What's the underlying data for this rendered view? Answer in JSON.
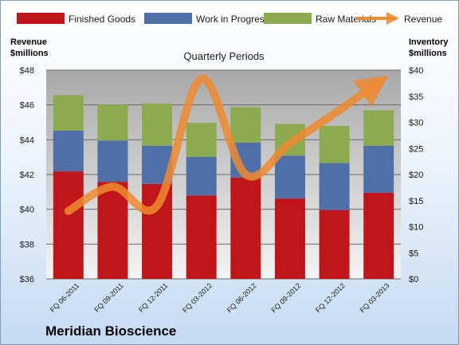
{
  "chart_data": {
    "type": "bar",
    "stacked": true,
    "title": "Quarterly Periods",
    "company": "Meridian Bioscience",
    "left_axis": {
      "label_line1": "Revenue",
      "label_line2": "$millions",
      "ylim": [
        36,
        48
      ],
      "ticks": [
        "$36",
        "$38",
        "$40",
        "$42",
        "$44",
        "$46",
        "$48"
      ]
    },
    "right_axis": {
      "label_line1": "Inventory",
      "label_line2": "$millions",
      "ylim": [
        0,
        40
      ],
      "ticks": [
        "$0",
        "$5",
        "$10",
        "$15",
        "$20",
        "$25",
        "$30",
        "$35",
        "$40"
      ]
    },
    "categories": [
      "FQ 06-2011",
      "FQ 09-2011",
      "FQ 12-2011",
      "FQ 03-2012",
      "FQ 06-2012",
      "FQ 09-2012",
      "FQ 12-2012",
      "FQ 03-2013"
    ],
    "series": [
      {
        "name": "Finished Goods",
        "axis": "right",
        "color": "#c0161a",
        "values": [
          20.6,
          18.6,
          18.2,
          16.0,
          19.4,
          15.4,
          13.2,
          16.5
        ]
      },
      {
        "name": "Work in Progress",
        "axis": "right",
        "color": "#4f6fa8",
        "values": [
          7.8,
          7.9,
          7.3,
          7.4,
          6.7,
          8.2,
          9.0,
          9.0
        ]
      },
      {
        "name": "Raw Materials",
        "axis": "right",
        "color": "#8caa4e",
        "values": [
          6.8,
          6.9,
          8.1,
          6.5,
          6.8,
          6.1,
          7.1,
          6.8
        ]
      },
      {
        "name": "Revenue",
        "axis": "left",
        "type": "line",
        "color": "#ee8a30",
        "values": [
          39.9,
          41.3,
          40.2,
          47.5,
          42.0,
          43.8,
          45.5,
          47.3
        ]
      }
    ],
    "grid": true,
    "legend_position": "top"
  }
}
